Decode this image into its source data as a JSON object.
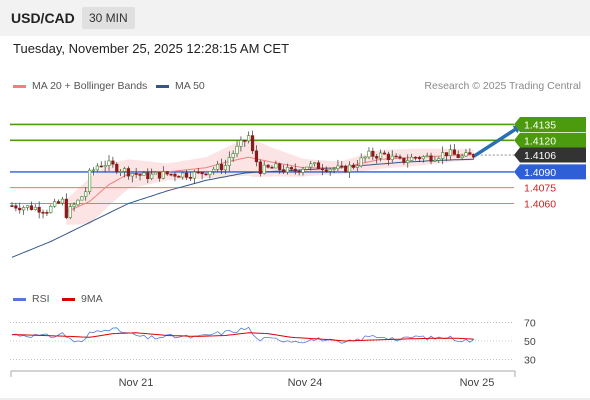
{
  "header": {
    "symbol": "USD/CAD",
    "timeframe": "30 MIN"
  },
  "datetime": "Tuesday, November 25, 2025 12:28:15 AM CET",
  "legend": {
    "ma20": {
      "label": "MA 20 + Bollinger Bands",
      "color": "#f08080"
    },
    "ma50": {
      "label": "MA 50",
      "color": "#34568b"
    },
    "credit": "Research © 2025 Trading Central"
  },
  "rsi_legend": {
    "rsi": {
      "label": "RSI",
      "color": "#5577dd"
    },
    "ma9": {
      "label": "9MA",
      "color": "#dd0000"
    }
  },
  "colors": {
    "green": "#4c9a0e",
    "blue": "#2f5fd6",
    "red": "#e86060",
    "dark": "#333333",
    "candle_up": "#3a8a2a",
    "candle_down": "#8b1a1a"
  },
  "chart_data": [
    {
      "type": "candlestick",
      "title": "USD/CAD 30 MIN",
      "ylim": [
        1.3978,
        1.4162
      ],
      "xlabels": [
        "Nov 21",
        "Nov 24",
        "Nov 25"
      ],
      "bars": 120,
      "levels": [
        {
          "value": 1.4135,
          "label": "1.4135",
          "kind": "resistance"
        },
        {
          "value": 1.412,
          "label": "1.4120",
          "kind": "resistance"
        },
        {
          "value": 1.4106,
          "label": "1.4106",
          "kind": "last"
        },
        {
          "value": 1.409,
          "label": "1.4090",
          "kind": "pivot"
        },
        {
          "value": 1.4075,
          "label": "1.4075",
          "kind": "support"
        },
        {
          "value": 1.406,
          "label": "1.4060",
          "kind": "support"
        }
      ],
      "close_anchors": [
        [
          0,
          1.4058
        ],
        [
          6,
          1.4056
        ],
        [
          9,
          1.4054
        ],
        [
          13,
          1.4062
        ],
        [
          14,
          1.405
        ],
        [
          17,
          1.4062
        ],
        [
          19,
          1.4072
        ],
        [
          20,
          1.4088
        ],
        [
          22,
          1.4096
        ],
        [
          24,
          1.4098
        ],
        [
          30,
          1.409
        ],
        [
          34,
          1.4086
        ],
        [
          40,
          1.4088
        ],
        [
          48,
          1.4088
        ],
        [
          51,
          1.4092
        ],
        [
          55,
          1.4096
        ],
        [
          56,
          1.4104
        ],
        [
          58,
          1.4112
        ],
        [
          61,
          1.4124
        ],
        [
          62,
          1.4108
        ],
        [
          64,
          1.4092
        ],
        [
          68,
          1.4094
        ],
        [
          72,
          1.409
        ],
        [
          76,
          1.4096
        ],
        [
          80,
          1.4095
        ],
        [
          85,
          1.4092
        ],
        [
          88,
          1.4096
        ],
        [
          92,
          1.4106
        ],
        [
          96,
          1.4106
        ],
        [
          100,
          1.41
        ],
        [
          104,
          1.4104
        ],
        [
          108,
          1.4104
        ],
        [
          112,
          1.4108
        ],
        [
          116,
          1.4104
        ],
        [
          119,
          1.4106
        ]
      ],
      "ma20_anchors": [
        [
          14,
          1.4052
        ],
        [
          20,
          1.4062
        ],
        [
          25,
          1.4078
        ],
        [
          30,
          1.4088
        ],
        [
          40,
          1.409
        ],
        [
          50,
          1.4094
        ],
        [
          56,
          1.41
        ],
        [
          61,
          1.4104
        ],
        [
          66,
          1.41
        ],
        [
          75,
          1.4094
        ],
        [
          85,
          1.4094
        ],
        [
          95,
          1.4102
        ],
        [
          105,
          1.4104
        ],
        [
          115,
          1.4106
        ],
        [
          119,
          1.4106
        ]
      ],
      "ma50_anchors": [
        [
          0,
          1.4009
        ],
        [
          10,
          1.4024
        ],
        [
          20,
          1.4042
        ],
        [
          30,
          1.406
        ],
        [
          40,
          1.4072
        ],
        [
          50,
          1.4082
        ],
        [
          60,
          1.4089
        ],
        [
          70,
          1.4091
        ],
        [
          80,
          1.4093
        ],
        [
          90,
          1.4096
        ],
        [
          100,
          1.4099
        ],
        [
          110,
          1.4101
        ],
        [
          119,
          1.4102
        ]
      ],
      "band_width_anchors": [
        [
          14,
          0.0012
        ],
        [
          20,
          0.0022
        ],
        [
          25,
          0.002
        ],
        [
          30,
          0.0014
        ],
        [
          40,
          0.0008
        ],
        [
          50,
          0.001
        ],
        [
          58,
          0.0016
        ],
        [
          62,
          0.0018
        ],
        [
          68,
          0.0013
        ],
        [
          76,
          0.0008
        ],
        [
          84,
          0.0006
        ],
        [
          95,
          0.0009
        ],
        [
          105,
          0.0008
        ],
        [
          119,
          0.0005
        ]
      ],
      "projection": {
        "from_bar": 119,
        "from_value": 1.4106,
        "to_bar": 131,
        "to_value": 1.4135
      }
    },
    {
      "type": "line",
      "title": "RSI",
      "ylim": [
        25,
        75
      ],
      "yticks": [
        70,
        50,
        30
      ],
      "series": [
        {
          "name": "RSI",
          "anchors": [
            [
              0,
              57
            ],
            [
              6,
              56
            ],
            [
              10,
              55
            ],
            [
              13,
              58
            ],
            [
              16,
              50
            ],
            [
              18,
              48
            ],
            [
              20,
              58
            ],
            [
              24,
              64
            ],
            [
              27,
              62
            ],
            [
              30,
              58
            ],
            [
              35,
              53
            ],
            [
              40,
              55
            ],
            [
              48,
              54
            ],
            [
              51,
              57
            ],
            [
              56,
              60
            ],
            [
              61,
              64
            ],
            [
              63,
              52
            ],
            [
              68,
              52
            ],
            [
              74,
              50
            ],
            [
              80,
              52
            ],
            [
              85,
              47
            ],
            [
              88,
              50
            ],
            [
              92,
              55
            ],
            [
              96,
              55
            ],
            [
              100,
              51
            ],
            [
              104,
              55
            ],
            [
              108,
              53
            ],
            [
              112,
              54
            ],
            [
              116,
              51
            ],
            [
              119,
              50
            ]
          ]
        },
        {
          "name": "9MA",
          "anchors": [
            [
              0,
              57
            ],
            [
              8,
              56
            ],
            [
              15,
              55
            ],
            [
              20,
              54
            ],
            [
              26,
              58
            ],
            [
              32,
              59
            ],
            [
              40,
              56
            ],
            [
              48,
              55
            ],
            [
              55,
              56
            ],
            [
              61,
              59
            ],
            [
              66,
              58
            ],
            [
              72,
              54
            ],
            [
              80,
              52
            ],
            [
              86,
              50
            ],
            [
              92,
              51
            ],
            [
              100,
              52
            ],
            [
              108,
              53
            ],
            [
              115,
              53
            ],
            [
              119,
              52
            ]
          ]
        }
      ]
    }
  ]
}
